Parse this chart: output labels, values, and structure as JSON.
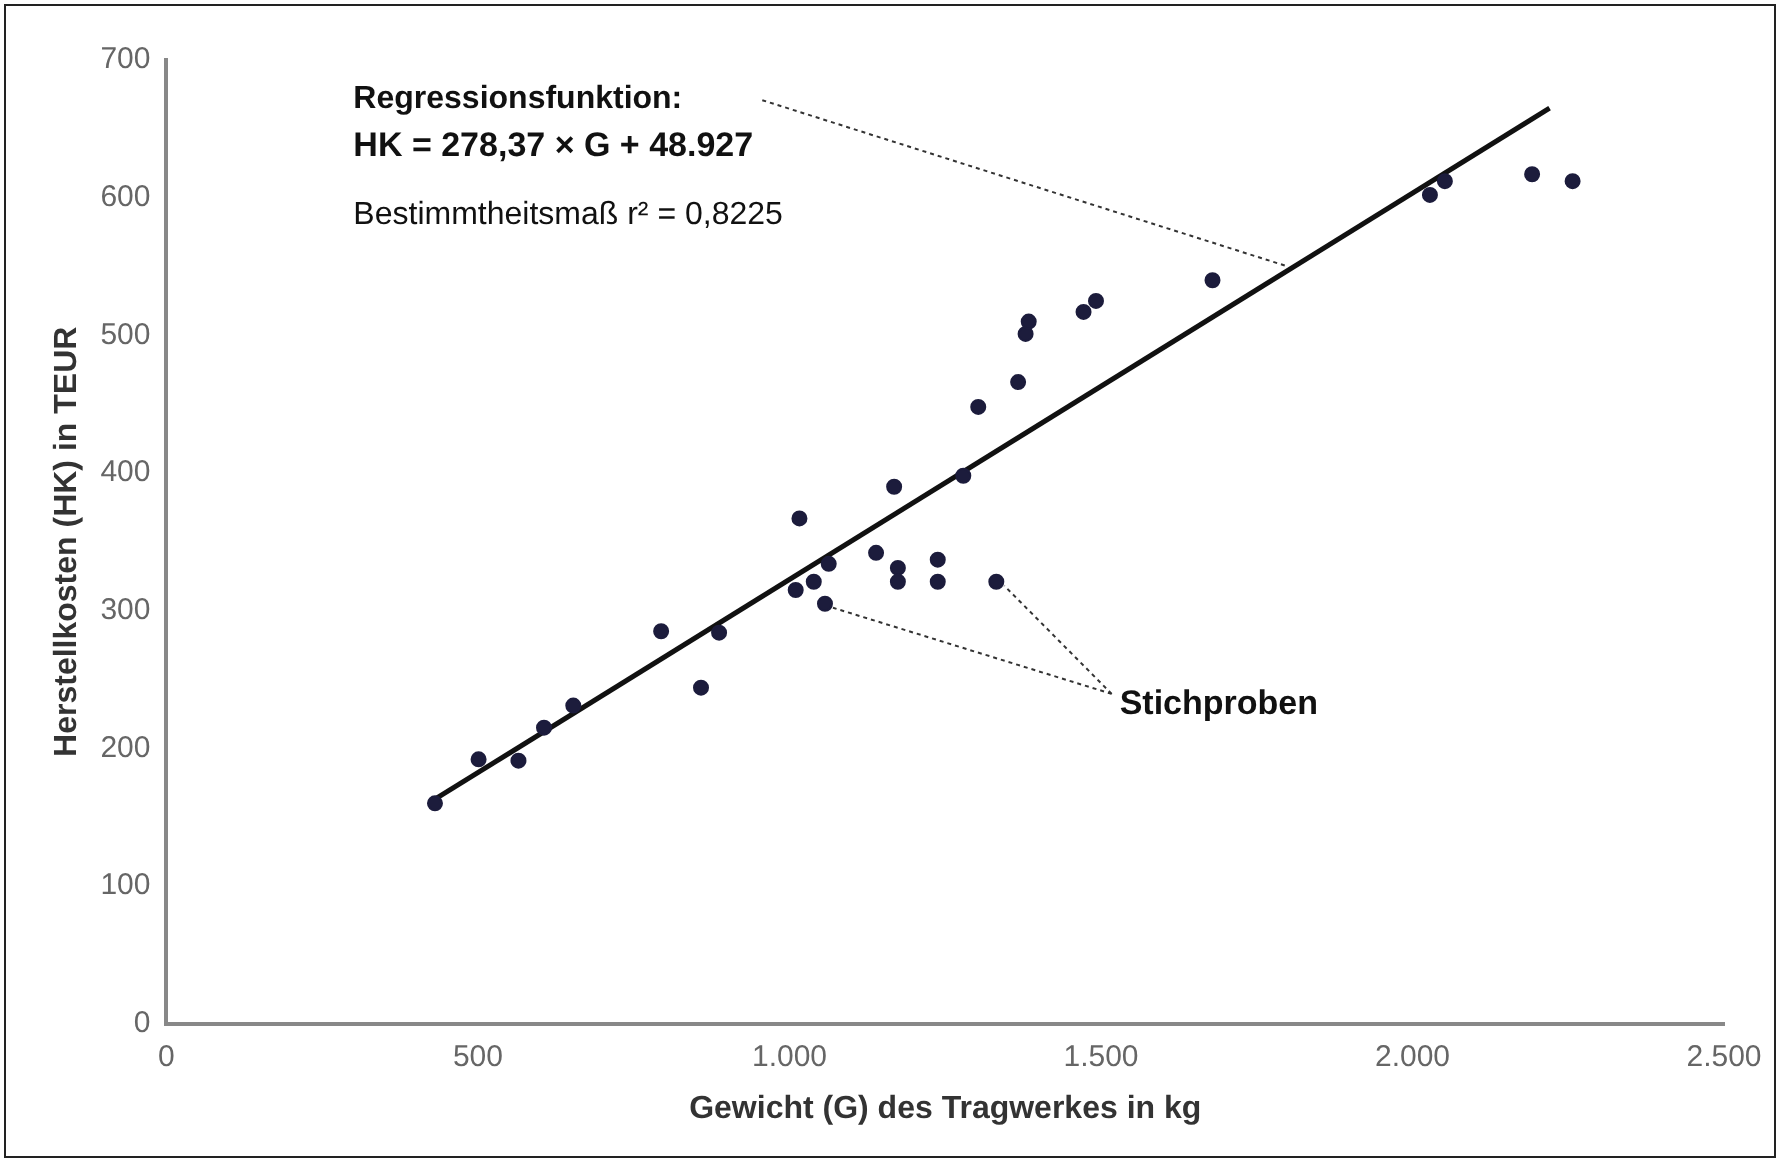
{
  "chart_data": {
    "type": "scatter",
    "xlabel": "Gewicht (G) des Tragwerkes in kg",
    "ylabel": "Herstellkosten (HK) in TEUR",
    "xlim": [
      0,
      2500
    ],
    "ylim": [
      0,
      700
    ],
    "xticks": [
      0,
      500,
      {
        "value": 1000,
        "label": "1.000"
      },
      {
        "value": 1500,
        "label": "1.500"
      },
      {
        "value": 2000,
        "label": "2.000"
      },
      {
        "value": 2500,
        "label": "2.500"
      }
    ],
    "yticks": [
      0,
      100,
      200,
      300,
      400,
      500,
      600,
      700
    ],
    "grid": false,
    "legend": false,
    "series": [
      {
        "marker": "circle",
        "color": "#1c1c3c",
        "x": [
          431,
          501,
          565,
          606,
          653,
          794,
          858,
          887,
          1010,
          1016,
          1039,
          1057,
          1063,
          1139,
          1168,
          1174,
          1174,
          1238,
          1238,
          1279,
          1303,
          1332,
          1367,
          1379,
          1384,
          1472,
          1492,
          1679,
          2028,
          2052,
          2192,
          2257
        ],
        "values": [
          160,
          192,
          191,
          215,
          231,
          285,
          244,
          284,
          315,
          367,
          321,
          305,
          334,
          342,
          390,
          331,
          321,
          337,
          321,
          398,
          448,
          321,
          466,
          501,
          510,
          517,
          525,
          540,
          602,
          612,
          617,
          612
        ]
      },
      {
        "type": "line",
        "marker": "none",
        "color": "#111111",
        "x": [
          431,
          2220
        ],
        "values": [
          163,
          665
        ]
      }
    ],
    "annotations": [
      "Regressionsfunktion:",
      {
        "text": "HK = 278,37 × G + 48.927",
        "x": 1800,
        "y": 550
      },
      "Bestimmtheitsmaß r² = 0,8225",
      {
        "text": "Stichproben",
        "x": 1332,
        "y": 321
      }
    ]
  }
}
